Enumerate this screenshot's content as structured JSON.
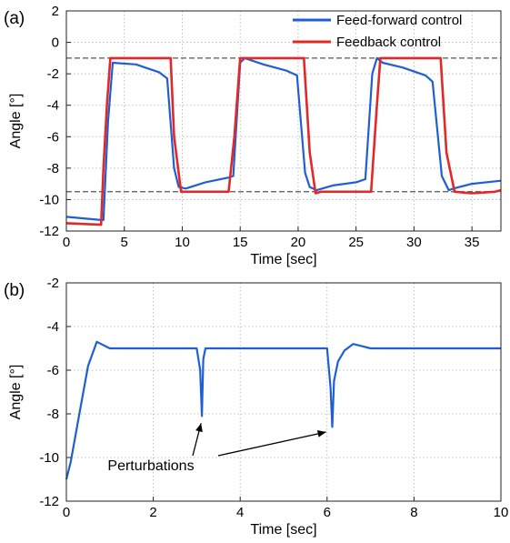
{
  "chart_data": [
    {
      "type": "line",
      "panel_label": "(a)",
      "xlabel": "Time [sec]",
      "ylabel": "Angle [°]",
      "xlim": [
        0,
        37.5
      ],
      "ylim": [
        -12,
        2
      ],
      "xticks": [
        0,
        5,
        10,
        15,
        20,
        25,
        30,
        35
      ],
      "yticks": [
        2,
        0,
        -2,
        -4,
        -6,
        -8,
        -10,
        -12
      ],
      "grid": true,
      "legend": "top-right",
      "reference_lines": [
        {
          "y": -1,
          "style": "dashed",
          "color": "#555555"
        },
        {
          "y": -9.5,
          "style": "dashed",
          "color": "#555555"
        }
      ],
      "series": [
        {
          "name": "Feed-forward control",
          "color": "#1f5fd6",
          "x": [
            0,
            3,
            3.2,
            3.6,
            4.0,
            6.0,
            8.0,
            8.7,
            9.3,
            9.7,
            10.3,
            12.0,
            14.0,
            14.4,
            15.0,
            15.4,
            17.0,
            19.0,
            19.9,
            20.6,
            21.0,
            21.6,
            23.0,
            25.0,
            25.8,
            26.4,
            26.8,
            27.3,
            29.0,
            31.0,
            31.6,
            32.4,
            33.0,
            33.4,
            35.0,
            37.5
          ],
          "y": [
            -11.1,
            -11.3,
            -11.3,
            -5,
            -1.3,
            -1.4,
            -1.9,
            -2.3,
            -8,
            -9.2,
            -9.3,
            -8.9,
            -8.6,
            -8.5,
            -1.3,
            -1.0,
            -1.4,
            -1.8,
            -2.1,
            -8.3,
            -9.2,
            -9.4,
            -9.1,
            -8.9,
            -8.7,
            -2.0,
            -1.0,
            -1.3,
            -1.6,
            -2.1,
            -2.5,
            -8.5,
            -9.4,
            -9.3,
            -9.0,
            -8.8
          ]
        },
        {
          "name": "Feedback control",
          "color": "#e22828",
          "x": [
            0,
            3,
            3.2,
            3.5,
            3.8,
            9.0,
            9.3,
            9.9,
            14.0,
            14.5,
            15.0,
            20.5,
            21.0,
            21.5,
            22.0,
            26.3,
            26.8,
            27.1,
            32.3,
            32.8,
            33.5,
            35.0,
            37.0,
            37.5
          ],
          "y": [
            -11.5,
            -11.6,
            -8,
            -4,
            -1,
            -1,
            -6,
            -9.5,
            -9.5,
            -6,
            -1,
            -1,
            -7,
            -9.6,
            -9.5,
            -9.5,
            -4,
            -1,
            -1,
            -7,
            -9.5,
            -9.6,
            -9.5,
            -9.4
          ]
        }
      ]
    },
    {
      "type": "line",
      "panel_label": "(b)",
      "xlabel": "Time [sec]",
      "ylabel": "Angle [°]",
      "xlim": [
        0,
        10
      ],
      "ylim": [
        -12,
        -2
      ],
      "xticks": [
        0,
        2,
        4,
        6,
        8,
        10
      ],
      "yticks": [
        -2,
        -4,
        -6,
        -8,
        -10,
        -12
      ],
      "grid": true,
      "annotations": [
        {
          "text": "Perturbations",
          "points_to": [
            [
              3.1,
              -8.1
            ],
            [
              6.1,
              -8.5
            ]
          ]
        }
      ],
      "series": [
        {
          "color": "#1f5fd6",
          "x": [
            0,
            0.1,
            0.3,
            0.5,
            0.7,
            0.8,
            1.0,
            1.5,
            2.0,
            2.5,
            3.0,
            3.08,
            3.12,
            3.15,
            3.2,
            4.0,
            5.0,
            6.0,
            6.08,
            6.12,
            6.16,
            6.25,
            6.4,
            6.6,
            6.8,
            7.0,
            8.0,
            9.0,
            10.0
          ],
          "y": [
            -11,
            -10.2,
            -8,
            -5.8,
            -4.7,
            -4.8,
            -5.0,
            -5.0,
            -5.0,
            -5.0,
            -5.0,
            -6.0,
            -8.1,
            -5.5,
            -5.0,
            -5.0,
            -5.0,
            -5.0,
            -6.8,
            -8.6,
            -6.5,
            -5.6,
            -5.1,
            -4.8,
            -4.9,
            -5.0,
            -5.0,
            -5.0,
            -5.0
          ]
        }
      ]
    }
  ]
}
